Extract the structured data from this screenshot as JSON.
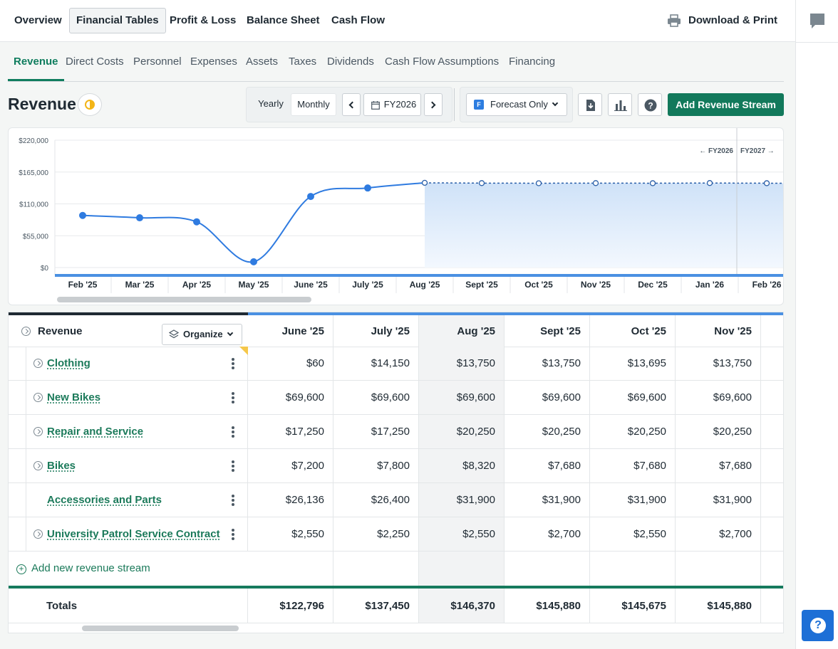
{
  "topnav": {
    "items": [
      "Overview",
      "Financial Tables",
      "Profit & Loss",
      "Balance Sheet",
      "Cash Flow"
    ],
    "active": "Financial Tables",
    "download_label": "Download & Print"
  },
  "subtabs": {
    "items": [
      "Revenue",
      "Direct Costs",
      "Personnel",
      "Expenses",
      "Assets",
      "Taxes",
      "Dividends",
      "Cash Flow Assumptions",
      "Financing"
    ],
    "active": "Revenue"
  },
  "header": {
    "title": "Revenue",
    "yearly_label": "Yearly",
    "monthly_label": "Monthly",
    "fiscal_year": "FY2026",
    "filter_label": "Forecast Only",
    "filter_badge": "F",
    "add_button": "Add Revenue Stream"
  },
  "chart_data": {
    "type": "line",
    "x": [
      "Feb '25",
      "Mar '25",
      "Apr '25",
      "May '25",
      "June '25",
      "July '25",
      "Aug '25",
      "Sept '25",
      "Oct '25",
      "Nov '25",
      "Dec '25",
      "Jan '26",
      "Feb '26"
    ],
    "series": [
      {
        "values": [
          90000,
          86000,
          79000,
          10000,
          122796,
          137450,
          146370,
          145880,
          145675,
          145880,
          145700,
          146000,
          145700
        ]
      }
    ],
    "forecast_start_index": 6,
    "y_ticks": [
      "$0",
      "$55,000",
      "$110,000",
      "$165,000",
      "$220,000"
    ],
    "ylim": [
      0,
      220000
    ],
    "grid": true,
    "fy_markers": {
      "left": "← FY2026",
      "right": "FY2027 →"
    },
    "colors": {
      "line": "#2f7be0",
      "forecast_fill": "#cfe2f8"
    }
  },
  "table": {
    "header_label": "Revenue",
    "organize_label": "Organize",
    "columns": [
      "June '25",
      "July '25",
      "Aug '25",
      "Sept '25",
      "Oct '25",
      "Nov '25"
    ],
    "rows": [
      {
        "label": "Clothing",
        "expandable": true,
        "values": [
          "$60",
          "$14,150",
          "$13,750",
          "$13,750",
          "$13,695",
          "$13,750"
        ]
      },
      {
        "label": "New Bikes",
        "expandable": true,
        "values": [
          "$69,600",
          "$69,600",
          "$69,600",
          "$69,600",
          "$69,600",
          "$69,600"
        ]
      },
      {
        "label": "Repair and Service",
        "expandable": true,
        "values": [
          "$17,250",
          "$17,250",
          "$20,250",
          "$20,250",
          "$20,250",
          "$20,250"
        ]
      },
      {
        "label": "Bikes",
        "expandable": true,
        "values": [
          "$7,200",
          "$7,800",
          "$8,320",
          "$7,680",
          "$7,680",
          "$7,680"
        ]
      },
      {
        "label": "Accessories and Parts",
        "expandable": false,
        "values": [
          "$26,136",
          "$26,400",
          "$31,900",
          "$31,900",
          "$31,900",
          "$31,900"
        ]
      },
      {
        "label": "University Patrol Service Contract",
        "expandable": true,
        "values": [
          "$2,550",
          "$2,250",
          "$2,550",
          "$2,700",
          "$2,550",
          "$2,700"
        ]
      }
    ],
    "add_label": "Add new revenue stream",
    "totals_label": "Totals",
    "totals": [
      "$122,796",
      "$137,450",
      "$146,370",
      "$145,880",
      "$145,675",
      "$145,880"
    ]
  },
  "help_label": "?"
}
